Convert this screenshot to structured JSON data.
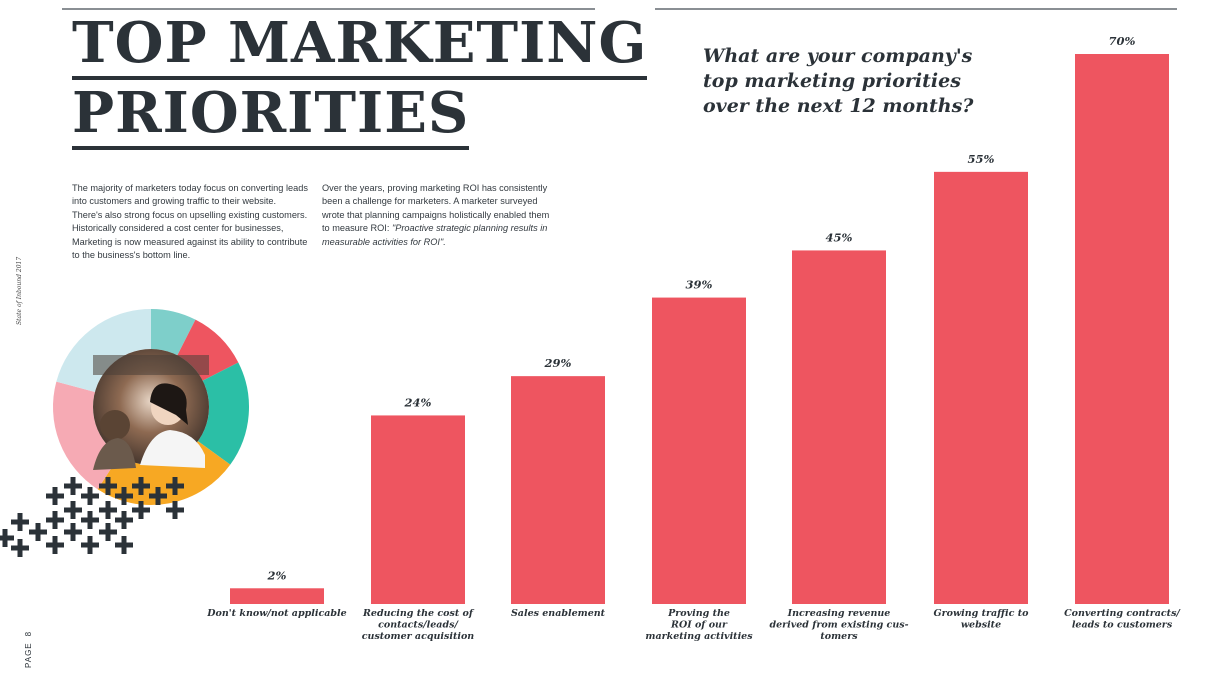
{
  "page": {
    "title_lines": [
      "TOP MARKETING",
      "PRIORITIES"
    ],
    "paragraph_left": "The majority of marketers today focus on converting leads into customers and growing traffic to their website. There's also strong focus on upselling existing customers. Historically considered a cost center for businesses, Marketing is now measured against its ability to contribute to the business's bottom line.",
    "paragraph_right_intro": "Over the years, proving marketing ROI has consistently been a challenge for marketers. A marketer surveyed wrote that planning campaigns holistically enabled them to measure ROI: ",
    "paragraph_right_quote": "\"Proactive strategic planning results in measurable activities for ROI\".",
    "question_lines": [
      "What are your company's",
      "top marketing priorities",
      "over the next 12 months?"
    ],
    "side_note": "State of Inbound 2017",
    "page_label": "PAGE",
    "page_number": "8"
  },
  "colors": {
    "bar": "#ee5560",
    "text": "#2b3238",
    "donut": [
      "#7ecfca",
      "#ee5560",
      "#2bbfa6",
      "#f7a823",
      "#f6aab4",
      "#cde8ee"
    ]
  },
  "icons": {
    "photo": "woman-smiling-photo",
    "pattern": "plus-pattern"
  },
  "chart_data": {
    "type": "bar",
    "title": "What are your company's top marketing priorities over the next 12 months?",
    "categories": [
      "Don't know/not applicable",
      "Reducing the cost of contacts/leads/ customer acquisition",
      "Sales enablement",
      "Proving the ROI of our marketing activities",
      "Increasing revenue derived from existing customers",
      "Growing traffic to website",
      "Converting contracts/ leads to customers"
    ],
    "category_lines": [
      [
        "Don't know/not applicable"
      ],
      [
        "Reducing the cost of",
        "contacts/leads/",
        "customer acquisition"
      ],
      [
        "Sales enablement"
      ],
      [
        "Proving the",
        "ROI of our",
        "marketing activities"
      ],
      [
        "Increasing revenue",
        "derived from existing cus-",
        "tomers"
      ],
      [
        "Growing traffic to",
        "website"
      ],
      [
        "Converting contracts/",
        "leads to customers"
      ]
    ],
    "values": [
      2,
      24,
      29,
      39,
      45,
      55,
      70
    ],
    "value_labels": [
      "2%",
      "24%",
      "29%",
      "39%",
      "45%",
      "55%",
      "70%"
    ],
    "unit": "%",
    "ylim": [
      0,
      70
    ],
    "grid": false,
    "legend": "none"
  }
}
